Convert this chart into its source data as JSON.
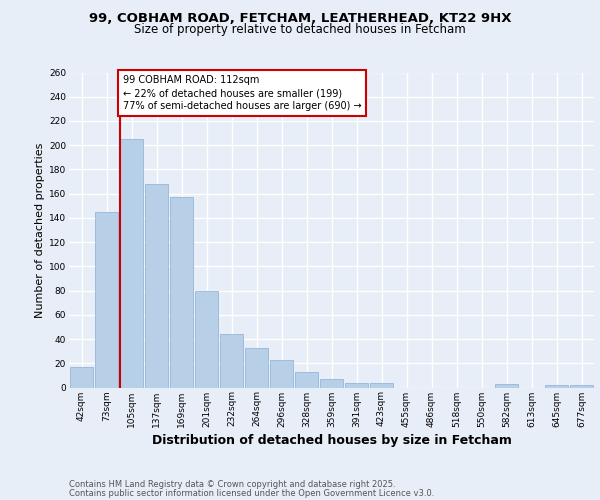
{
  "title1": "99, COBHAM ROAD, FETCHAM, LEATHERHEAD, KT22 9HX",
  "title2": "Size of property relative to detached houses in Fetcham",
  "xlabel": "Distribution of detached houses by size in Fetcham",
  "ylabel": "Number of detached properties",
  "categories": [
    "42sqm",
    "73sqm",
    "105sqm",
    "137sqm",
    "169sqm",
    "201sqm",
    "232sqm",
    "264sqm",
    "296sqm",
    "328sqm",
    "359sqm",
    "391sqm",
    "423sqm",
    "455sqm",
    "486sqm",
    "518sqm",
    "550sqm",
    "582sqm",
    "613sqm",
    "645sqm",
    "677sqm"
  ],
  "values": [
    17,
    145,
    205,
    168,
    157,
    80,
    44,
    33,
    23,
    13,
    7,
    4,
    4,
    0,
    0,
    0,
    0,
    3,
    0,
    2,
    2
  ],
  "bar_color": "#b8cfe8",
  "bar_edgecolor": "#8ab0d4",
  "annotation_title": "99 COBHAM ROAD: 112sqm",
  "annotation_line2": "← 22% of detached houses are smaller (199)",
  "annotation_line3": "77% of semi-detached houses are larger (690) →",
  "annotation_box_facecolor": "#ffffff",
  "annotation_box_edgecolor": "#cc0000",
  "vline_color": "#cc0000",
  "ylim": [
    0,
    260
  ],
  "yticks": [
    0,
    20,
    40,
    60,
    80,
    100,
    120,
    140,
    160,
    180,
    200,
    220,
    240,
    260
  ],
  "footer1": "Contains HM Land Registry data © Crown copyright and database right 2025.",
  "footer2": "Contains public sector information licensed under the Open Government Licence v3.0.",
  "bg_color": "#e8eef7",
  "plot_bg_color": "#e8eef7",
  "grid_color": "#ffffff",
  "title_fontsize": 9.5,
  "subtitle_fontsize": 8.5,
  "xlabel_fontsize": 9,
  "ylabel_fontsize": 8,
  "tick_fontsize": 6.5,
  "annotation_fontsize": 7,
  "footer_fontsize": 6
}
